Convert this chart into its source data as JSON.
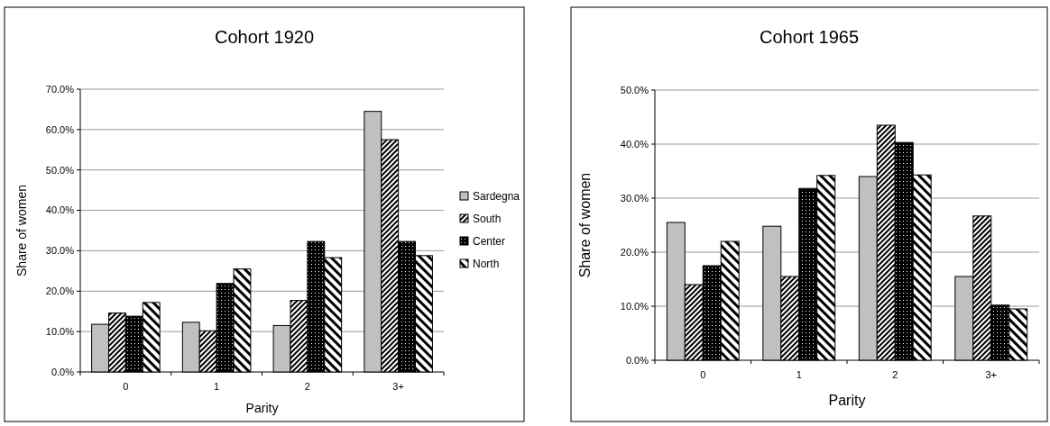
{
  "chart_data": [
    {
      "type": "bar",
      "title": "Cohort 1920",
      "xlabel": "Parity",
      "ylabel": "Share of women",
      "categories": [
        "0",
        "1",
        "2",
        "3+"
      ],
      "series": [
        {
          "name": "Sardegna",
          "color": "#c0c0c0",
          "values": [
            11.8,
            12.3,
            11.5,
            64.5
          ]
        },
        {
          "name": "South",
          "color": "#000000",
          "values": [
            14.6,
            10.2,
            17.7,
            57.5
          ]
        },
        {
          "name": "Center",
          "color": "#000000",
          "values": [
            13.8,
            21.9,
            32.3,
            32.3
          ]
        },
        {
          "name": "North",
          "color": "#000000",
          "values": [
            17.2,
            25.5,
            28.3,
            28.8
          ]
        }
      ],
      "ylim": [
        0,
        70
      ],
      "yticks": [
        {
          "value": 0,
          "label": "0.0%"
        },
        {
          "value": 10,
          "label": "10.0%"
        },
        {
          "value": 20,
          "label": "20.0%"
        },
        {
          "value": 30,
          "label": "30.0%"
        },
        {
          "value": 40,
          "label": "40.0%"
        },
        {
          "value": 50,
          "label": "50.0%"
        },
        {
          "value": 60,
          "label": "60.0%"
        },
        {
          "value": 70,
          "label": "70.0%"
        }
      ],
      "grid": "y",
      "legend": "right"
    },
    {
      "type": "bar",
      "title": "Cohort 1965",
      "xlabel": "Parity",
      "ylabel": "Share of women",
      "categories": [
        "0",
        "1",
        "2",
        "3+"
      ],
      "series": [
        {
          "color": "#c0c0c0",
          "values": [
            25.5,
            24.8,
            34.0,
            15.5
          ]
        },
        {
          "color": "#000000",
          "values": [
            14.0,
            15.5,
            43.5,
            26.7
          ]
        },
        {
          "color": "#000000",
          "values": [
            17.5,
            31.8,
            40.3,
            10.2
          ]
        },
        {
          "color": "#000000",
          "values": [
            22.0,
            34.2,
            34.3,
            9.5
          ]
        }
      ],
      "ylim": [
        0,
        50
      ],
      "yticks": [
        {
          "value": 0,
          "label": "0.0%"
        },
        {
          "value": 10,
          "label": "10.0%"
        },
        {
          "value": 20,
          "label": "20.0%"
        },
        {
          "value": 30,
          "label": "30.0%"
        },
        {
          "value": 40,
          "label": "40.0%"
        },
        {
          "value": 50,
          "label": "50.0%"
        }
      ],
      "grid": "y"
    }
  ]
}
